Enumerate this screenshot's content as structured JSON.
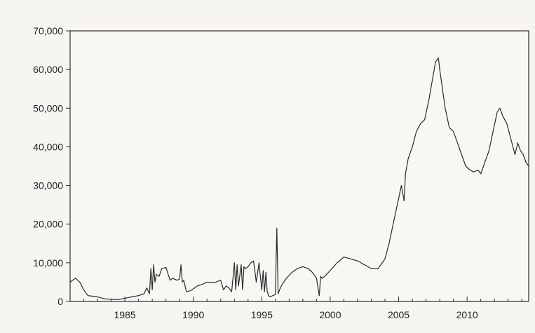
{
  "chart_data": {
    "type": "line",
    "title": "",
    "xlabel": "",
    "ylabel": "",
    "xlim": [
      1981,
      2014.5
    ],
    "ylim": [
      0,
      70000
    ],
    "xticks": [
      1985,
      1990,
      1995,
      2000,
      2005,
      2010
    ],
    "xtick_labels": [
      "1985",
      "1990",
      "1995",
      "2000",
      "2005",
      "2010"
    ],
    "yticks": [
      0,
      10000,
      20000,
      30000,
      40000,
      50000,
      60000,
      70000
    ],
    "ytick_labels": [
      "0",
      "10,000",
      "20,000",
      "30,000",
      "40,000",
      "50,000",
      "60,000",
      "70,000"
    ],
    "grid": false,
    "legend": "none",
    "line_color": "#2a2a2a",
    "series": [
      {
        "x": [
          1981.0,
          1981.4,
          1981.7,
          1982.0,
          1982.3,
          1983.0,
          1983.5,
          1984.0,
          1984.5,
          1985.0,
          1985.5,
          1986.0,
          1986.4,
          1986.6,
          1986.8,
          1986.9,
          1987.0,
          1987.1,
          1987.2,
          1987.3,
          1987.5,
          1987.7,
          1988.0,
          1988.3,
          1988.5,
          1988.8,
          1989.0,
          1989.1,
          1989.2,
          1989.3,
          1989.5,
          1989.8,
          1990.3,
          1990.7,
          1991.0,
          1991.5,
          1992.0,
          1992.2,
          1992.4,
          1992.6,
          1992.8,
          1993.0,
          1993.1,
          1993.2,
          1993.3,
          1993.5,
          1993.6,
          1993.7,
          1993.8,
          1994.0,
          1994.2,
          1994.4,
          1994.6,
          1994.8,
          1995.0,
          1995.1,
          1995.2,
          1995.3,
          1995.4,
          1995.5,
          1995.6,
          1995.8,
          1996.0,
          1996.1,
          1996.2,
          1996.3,
          1996.5,
          1996.8,
          1997.2,
          1997.6,
          1998.0,
          1998.4,
          1998.7,
          1999.0,
          1999.2,
          1999.3,
          1999.4,
          1999.6,
          2000.0,
          2000.5,
          2001.0,
          2001.5,
          2002.0,
          2002.5,
          2003.0,
          2003.5,
          2004.0,
          2004.3,
          2004.6,
          2004.9,
          2005.2,
          2005.4,
          2005.5,
          2005.7,
          2006.0,
          2006.3,
          2006.6,
          2006.9,
          2007.2,
          2007.5,
          2007.7,
          2007.9,
          2008.0,
          2008.2,
          2008.4,
          2008.7,
          2009.0,
          2009.3,
          2009.6,
          2009.9,
          2010.2,
          2010.5,
          2010.8,
          2011.0,
          2011.3,
          2011.6,
          2011.9,
          2012.2,
          2012.4,
          2012.6,
          2012.9,
          2013.2,
          2013.5,
          2013.7,
          2013.9,
          2014.1,
          2014.3,
          2014.5
        ],
        "y": [
          5000,
          6000,
          5000,
          3000,
          1500,
          1200,
          700,
          500,
          500,
          800,
          1200,
          1500,
          2000,
          3500,
          2000,
          8500,
          3000,
          9500,
          5000,
          7000,
          6500,
          8500,
          8800,
          5500,
          6000,
          5500,
          5800,
          9500,
          5000,
          5500,
          2500,
          2800,
          4000,
          4500,
          5000,
          4800,
          5500,
          3000,
          4000,
          3500,
          2500,
          10000,
          3000,
          9500,
          4000,
          9500,
          3000,
          9000,
          8500,
          9000,
          10000,
          10500,
          5000,
          10000,
          3000,
          8000,
          2500,
          7500,
          2500,
          1500,
          1200,
          1500,
          1800,
          19000,
          2000,
          3000,
          4500,
          6000,
          7500,
          8500,
          9000,
          8500,
          7500,
          6000,
          1500,
          6500,
          6000,
          6500,
          8000,
          10000,
          11500,
          11000,
          10500,
          9500,
          8500,
          8500,
          11000,
          15000,
          20000,
          25000,
          30000,
          26000,
          33000,
          37000,
          40000,
          44000,
          46000,
          47000,
          52000,
          58000,
          62000,
          63000,
          60000,
          55000,
          50000,
          45000,
          44000,
          41000,
          38000,
          35000,
          34000,
          33500,
          34000,
          33000,
          36000,
          39000,
          44000,
          49000,
          50000,
          48000,
          46000,
          42000,
          38000,
          41000,
          39000,
          38000,
          36000,
          35000
        ]
      }
    ]
  },
  "axis": {
    "ytick_labels": [
      "0",
      "10,000",
      "20,000",
      "30,000",
      "40,000",
      "50,000",
      "60,000",
      "70,000"
    ],
    "xtick_labels": [
      "1985",
      "1990",
      "1995",
      "2000",
      "2005",
      "2010"
    ]
  }
}
